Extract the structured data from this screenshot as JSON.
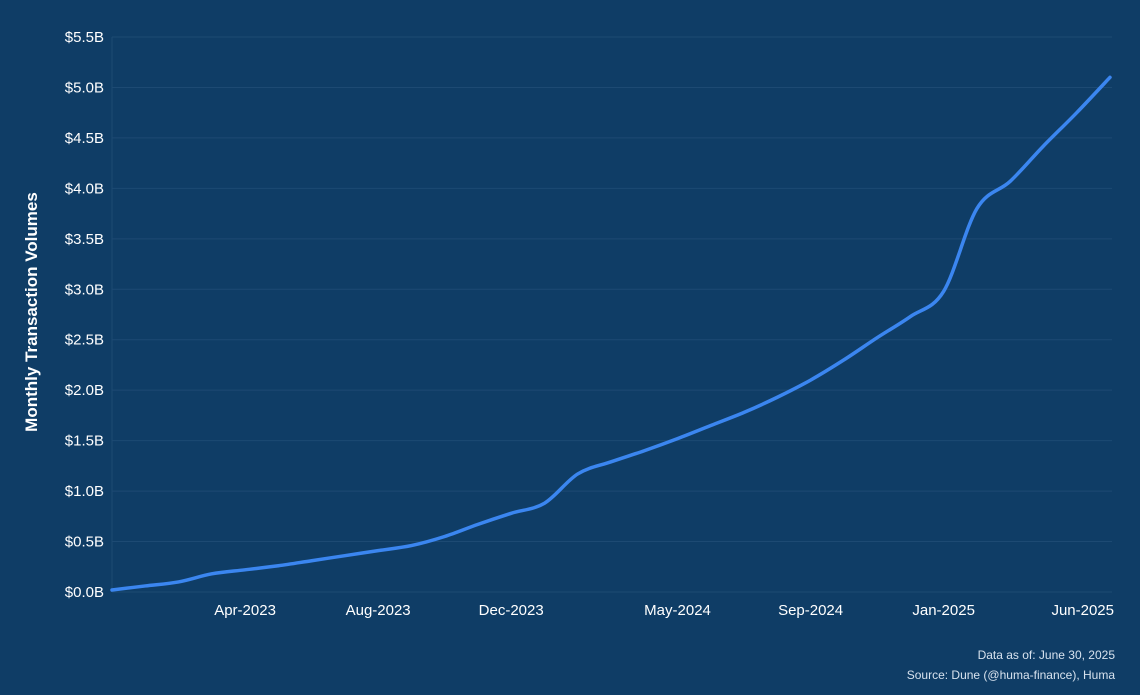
{
  "colors": {
    "background": "#0f3d66",
    "line": "#3b86f0",
    "grid": "#1d4a73",
    "text": "#ffffff"
  },
  "footnote": {
    "data_as_of": "Data as of: June 30, 2025",
    "source": "Source: Dune (@huma-finance), Huma"
  },
  "chart_data": {
    "type": "line",
    "title": "",
    "xlabel": "",
    "ylabel": "Monthly Transaction Volumes",
    "grid": true,
    "x_ticks": [
      "Apr-2023",
      "Aug-2023",
      "Dec-2023",
      "May-2024",
      "Sep-2024",
      "Jan-2025",
      "Jun-2025"
    ],
    "y_ticks": [
      "$0.0B",
      "$0.5B",
      "$1.0B",
      "$1.5B",
      "$2.0B",
      "$2.5B",
      "$3.0B",
      "$3.5B",
      "$4.0B",
      "$4.5B",
      "$5.0B",
      "$5.5B"
    ],
    "ylim": [
      0,
      5.5
    ],
    "y_unit": "$B",
    "x": [
      "2022-12",
      "2023-01",
      "2023-02",
      "2023-03",
      "2023-04",
      "2023-05",
      "2023-06",
      "2023-07",
      "2023-08",
      "2023-09",
      "2023-10",
      "2023-11",
      "2023-12",
      "2024-01",
      "2024-02",
      "2024-03",
      "2024-04",
      "2024-05",
      "2024-06",
      "2024-07",
      "2024-08",
      "2024-09",
      "2024-10",
      "2024-11",
      "2024-12",
      "2025-01",
      "2025-02",
      "2025-03",
      "2025-04",
      "2025-05",
      "2025-06"
    ],
    "series": [
      {
        "values": [
          0.02,
          0.06,
          0.1,
          0.18,
          0.22,
          0.26,
          0.31,
          0.36,
          0.41,
          0.46,
          0.55,
          0.67,
          0.78,
          0.88,
          1.17,
          1.29,
          1.4,
          1.52,
          1.65,
          1.78,
          1.93,
          2.1,
          2.3,
          2.52,
          2.73,
          2.98,
          3.8,
          4.07,
          4.42,
          4.75,
          5.1
        ]
      }
    ]
  }
}
